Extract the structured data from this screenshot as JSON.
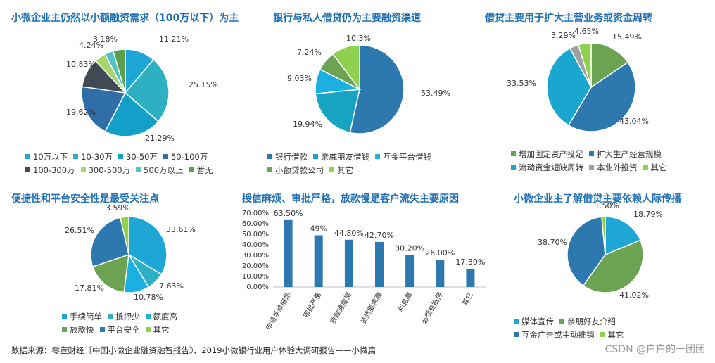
{
  "footer": "数据来源：零壹财经《中国小微企业融资融智报告》、2019小微银行业用户体验大调研报告——小微篇",
  "watermark": "CSDN @白白的一团团",
  "chart_data": [
    {
      "type": "pie",
      "title": "小微企业主仍然以小额融资需求（100万以下）为主",
      "categories": [
        "10万以下",
        "10-30万",
        "30-50万",
        "50-100万",
        "100-300万",
        "300-500万",
        "500万以上",
        "暂无"
      ],
      "values": [
        11.21,
        25.15,
        21.29,
        19.62,
        10.83,
        4.24,
        3.18,
        4.48
      ],
      "labels": [
        "11.21%",
        "25.15%",
        "21.29%",
        "19.62%",
        "10.83%",
        "4.24%",
        "3.18%",
        ""
      ],
      "colors": [
        "#1ea6d6",
        "#2db0c1",
        "#13a0c8",
        "#2f6ea8",
        "#3f4a55",
        "#a5d66a",
        "#4fc3c8",
        "#5d9f4c"
      ],
      "legend_position": "bottom"
    },
    {
      "type": "pie",
      "title": "银行与私人借贷仍为主要融资渠道",
      "categories": [
        "银行借款",
        "亲戚朋友借钱",
        "互金平台借钱",
        "小额贷款公司",
        "其它"
      ],
      "values": [
        53.49,
        19.94,
        9.03,
        7.24,
        10.3
      ],
      "labels": [
        "53.49%",
        "19.94%",
        "9.03%",
        "7.24%",
        "10.3%"
      ],
      "colors": [
        "#2e78b0",
        "#17a4c4",
        "#1ab0e2",
        "#6ba353",
        "#8fd14f"
      ],
      "legend_position": "bottom"
    },
    {
      "type": "pie",
      "title": "借贷主要用于扩大主营业务或资金周转",
      "categories": [
        "增加固定资产投足",
        "扩大生产经营规模",
        "流动资金短缺周转",
        "本业外投资",
        "其它"
      ],
      "values": [
        15.49,
        43.04,
        33.53,
        3.29,
        4.65
      ],
      "labels": [
        "15.49%",
        "43.04%",
        "33.53%",
        "3.29%",
        "4.65%"
      ],
      "colors": [
        "#6ba353",
        "#2e78b0",
        "#1aa7cf",
        "#a0a0a0",
        "#8fd14f"
      ],
      "legend_position": "bottom"
    },
    {
      "type": "pie",
      "title": "便捷性和平台安全性是最受关注点",
      "categories": [
        "手续简单",
        "抵押少",
        "额度高",
        "放款快",
        "平台安全",
        "其它"
      ],
      "values": [
        33.61,
        7.63,
        10.78,
        17.81,
        26.51,
        3.59
      ],
      "labels": [
        "33.61%",
        "7.63%",
        "10.78%",
        "17.81%",
        "26.51%",
        "3.59%"
      ],
      "colors": [
        "#1ea6d6",
        "#2db0c1",
        "#1ab0e2",
        "#6ba353",
        "#2e78b0",
        "#8fd14f"
      ],
      "legend_position": "bottom"
    },
    {
      "type": "bar",
      "title": "授信麻烦、审批严格，放款慢是客户流失主要原因",
      "categories": [
        "申请手续麻烦",
        "审批严格",
        "放款速度慢",
        "资质要求高",
        "利息高",
        "必须有抵押",
        "其它"
      ],
      "values": [
        63.5,
        49,
        44.8,
        42.7,
        30.2,
        26.0,
        17.3
      ],
      "labels": [
        "63.50%",
        "49%",
        "44.80%",
        "42.70%",
        "30.20%",
        "26.00%",
        "17.30%"
      ],
      "yticks": [
        "0.00%",
        "10.00%",
        "20.00%",
        "30.00%",
        "40.00%",
        "50.00%",
        "60.00%",
        "70.00%"
      ],
      "ylim": [
        0,
        70
      ],
      "colors": [
        "#2e78b0"
      ]
    },
    {
      "type": "pie",
      "title": "小微企业主了解借贷主要依赖人际传播",
      "categories": [
        "媒体宣传",
        "亲朋好友介绍",
        "互金广告或主动推销",
        "其它"
      ],
      "values": [
        18.79,
        41.02,
        38.7,
        1.5
      ],
      "labels": [
        "18.79%",
        "41.02%",
        "38.70%",
        "1.50%"
      ],
      "colors": [
        "#1ea6d6",
        "#6ba353",
        "#2e78b0",
        "#8fd14f"
      ],
      "legend_position": "bottom"
    }
  ]
}
